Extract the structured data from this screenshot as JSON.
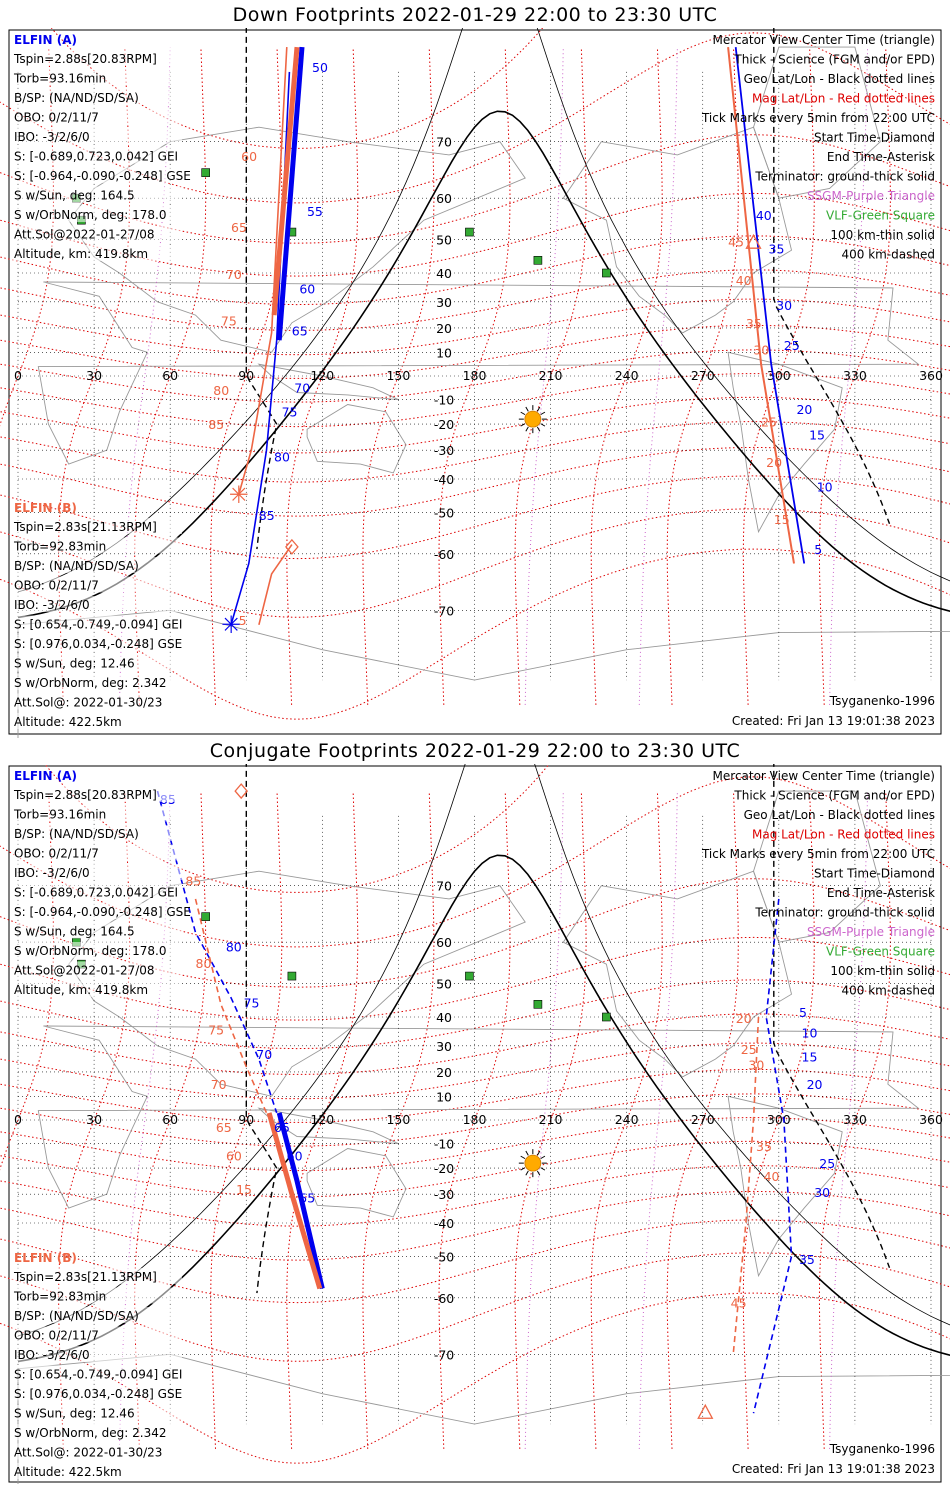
{
  "colors": {
    "elfin_a": "#0000ee",
    "elfin_b": "#ee6644",
    "mag_grid": "#dd0000",
    "geo_grid": "#000000",
    "ssgm": "#cc66cc",
    "vlf": "#33aa33",
    "coast": "#999999",
    "sun": "#ffaa00"
  },
  "panels": [
    {
      "id": "down",
      "title": "Down Footprints 2022-01-29 22:00 to 23:30 UTC",
      "lon_ticks": [
        "0",
        "30",
        "60",
        "90",
        "120",
        "150",
        "180",
        "210",
        "240",
        "270",
        "300",
        "330",
        "360"
      ],
      "lat_ticks": [
        "70",
        "60",
        "50",
        "40",
        "30",
        "20",
        "10",
        "-10",
        "-20",
        "-30",
        "-40",
        "-50",
        "-60",
        "-70"
      ],
      "elfin_a": {
        "header": "ELFIN (A)",
        "lines": [
          "Tspin=2.88s[20.83RPM]",
          "Torb=93.16min",
          "B/SP: (NA/ND/SD/SA)",
          "OBO: 0/2/11/7",
          "IBO: -3/2/6/0",
          "S: [-0.689,0.723,0.042] GEI",
          "S: [-0.964,-0.090,-0.248] GSE",
          "S w/Sun, deg: 164.5",
          "S w/OrbNorm, deg: 178.0",
          "Att.Sol@2022-01-27/08",
          "Altitude, km: 419.8km"
        ]
      },
      "elfin_b": {
        "header": "ELFIN (B)",
        "lines": [
          "Tspin=2.83s[21.13RPM]",
          "Torb=92.83min",
          "B/SP: (NA/ND/SD/SA)",
          "OBO: 0/2/11/7",
          "IBO: -3/2/6/0",
          "S: [0.654,-0.749,-0.094] GEI",
          "S: [0.976,0.034,-0.248] GSE",
          "S w/Sun, deg: 12.46",
          "S w/OrbNorm, deg: 2.342",
          "Att.Sol@: 2022-01-30/23",
          "Altitude: 422.5km"
        ]
      },
      "legend": [
        {
          "text": "Mercator View Center Time (triangle)",
          "color": "#000000"
        },
        {
          "text": "Thick - Science (FGM and/or EPD)",
          "color": "#000000"
        },
        {
          "text": "Geo Lat/Lon - Black dotted lines",
          "color": "#000000"
        },
        {
          "text": "Mag Lat/Lon - Red dotted lines",
          "color": "#dd0000"
        },
        {
          "text": "Tick Marks every 5min from 22:00 UTC",
          "color": "#000000"
        },
        {
          "text": "Start Time-Diamond",
          "color": "#000000"
        },
        {
          "text": "End Time-Asterisk",
          "color": "#000000"
        },
        {
          "text": "Terminator: ground-thick solid",
          "color": "#000000"
        },
        {
          "text": "SSGM-Purple Triangle",
          "color": "#cc66cc"
        },
        {
          "text": "VLF-Green Square",
          "color": "#33aa33"
        },
        {
          "text": "100 km-thin solid",
          "color": "#000000"
        },
        {
          "text": "400 km-dashed",
          "color": "#000000"
        }
      ],
      "credit": "Tsyganenko-1996",
      "created": "Created: Fri Jan 13 19:01:38 2023",
      "tick_labels_a": [
        "50",
        "55",
        "60",
        "65",
        "70",
        "75",
        "80",
        "85",
        "40",
        "35",
        "30",
        "25",
        "20",
        "15",
        "10",
        "5"
      ],
      "tick_labels_b": [
        "60",
        "65",
        "70",
        "75",
        "80",
        "85",
        "5",
        "45",
        "40",
        "35",
        "30",
        "25",
        "20",
        "15"
      ]
    },
    {
      "id": "conjugate",
      "title": "Conjugate Footprints 2022-01-29 22:00 to 23:30 UTC",
      "lon_ticks": [
        "0",
        "30",
        "60",
        "90",
        "120",
        "150",
        "180",
        "210",
        "240",
        "270",
        "300",
        "330",
        "360"
      ],
      "lat_ticks": [
        "70",
        "60",
        "50",
        "40",
        "30",
        "20",
        "10",
        "-10",
        "-20",
        "-30",
        "-40",
        "-50",
        "-60",
        "-70"
      ],
      "elfin_a": {
        "header": "ELFIN (A)",
        "lines": [
          "Tspin=2.88s[20.83RPM]",
          "Torb=93.16min",
          "B/SP: (NA/ND/SD/SA)",
          "OBO: 0/2/11/7",
          "IBO: -3/2/6/0",
          "S: [-0.689,0.723,0.042] GEI",
          "S: [-0.964,-0.090,-0.248] GSE",
          "S w/Sun, deg: 164.5",
          "S w/OrbNorm, deg: 178.0",
          "Att.Sol@2022-01-27/08",
          "Altitude, km: 419.8km"
        ]
      },
      "elfin_b": {
        "header": "ELFIN (B)",
        "lines": [
          "Tspin=2.83s[21.13RPM]",
          "Torb=92.83min",
          "B/SP: (NA/ND/SD/SA)",
          "OBO: 0/2/11/7",
          "IBO: -3/2/6/0",
          "S: [0.654,-0.749,-0.094] GEI",
          "S: [0.976,0.034,-0.248] GSE",
          "S w/Sun, deg: 12.46",
          "S w/OrbNorm, deg: 2.342",
          "Att.Sol@: 2022-01-30/23",
          "Altitude: 422.5km"
        ]
      },
      "legend": [
        {
          "text": "Mercator View Center Time (triangle)",
          "color": "#000000"
        },
        {
          "text": "Thick - Science (FGM and/or EPD)",
          "color": "#000000"
        },
        {
          "text": "Geo Lat/Lon - Black dotted lines",
          "color": "#000000"
        },
        {
          "text": "Mag Lat/Lon - Red dotted lines",
          "color": "#dd0000"
        },
        {
          "text": "Tick Marks every 5min from 22:00 UTC",
          "color": "#000000"
        },
        {
          "text": "Start Time-Diamond",
          "color": "#000000"
        },
        {
          "text": "End Time-Asterisk",
          "color": "#000000"
        },
        {
          "text": "Terminator: ground-thick solid",
          "color": "#000000"
        },
        {
          "text": "SSGM-Purple Triangle",
          "color": "#cc66cc"
        },
        {
          "text": "VLF-Green Square",
          "color": "#33aa33"
        },
        {
          "text": "100 km-thin solid",
          "color": "#000000"
        },
        {
          "text": "400 km-dashed",
          "color": "#000000"
        }
      ],
      "credit": "Tsyganenko-1996",
      "created": "Created: Fri Jan 13 19:01:38 2023",
      "tick_labels_a": [
        "85",
        "80",
        "75",
        "70",
        "65",
        "60",
        "55",
        "5",
        "10",
        "15",
        "20",
        "25",
        "30",
        "35"
      ],
      "tick_labels_b": [
        "85",
        "80",
        "75",
        "70",
        "65",
        "60",
        "15",
        "20",
        "25",
        "30",
        "35",
        "40",
        "45"
      ]
    }
  ]
}
